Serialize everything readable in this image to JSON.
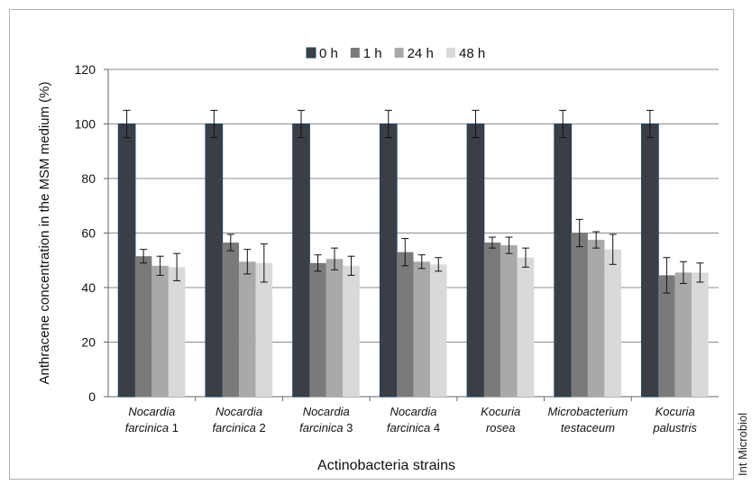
{
  "chart_data": {
    "type": "bar",
    "ylabel": "Anthracene concentration in the MSM medium (%)",
    "xlabel": "Actinobacteria strains",
    "ylim": [
      0,
      120
    ],
    "yticks": [
      0,
      20,
      40,
      60,
      80,
      100,
      120
    ],
    "grid": true,
    "legend_position": "top-center",
    "categories": [
      {
        "italic": "Nocardia",
        "rest": "farcinica",
        "suffix": " 1"
      },
      {
        "italic": "Nocardia",
        "rest": "farcinica",
        "suffix": " 2"
      },
      {
        "italic": "Nocardia",
        "rest": "farcinica",
        "suffix": " 3"
      },
      {
        "italic": "Nocardia",
        "rest": "farcinica",
        "suffix": " 4"
      },
      {
        "italic": "Kocuria",
        "rest": "rosea",
        "suffix": ""
      },
      {
        "italic": "Microbacterium",
        "rest": "testaceum",
        "suffix": ""
      },
      {
        "italic": "Kocuria",
        "rest": "palustris",
        "suffix": ""
      }
    ],
    "series": [
      {
        "name": "0 h",
        "color": "#3b3f45",
        "values": [
          100,
          100,
          100,
          100,
          100,
          100,
          100
        ],
        "errors": [
          5,
          5,
          5,
          5,
          5,
          5,
          5
        ]
      },
      {
        "name": "1 h",
        "color": "#7a7a7a",
        "values": [
          51.5,
          56.5,
          49,
          53,
          56.5,
          60,
          44.5
        ],
        "errors": [
          2.5,
          3,
          3,
          5,
          2,
          5,
          6.5
        ]
      },
      {
        "name": "24 h",
        "color": "#a9a9a9",
        "values": [
          48,
          49.5,
          50.5,
          49.5,
          55.5,
          57.5,
          45.5
        ],
        "errors": [
          3.5,
          4.5,
          4,
          2.5,
          3,
          3,
          4
        ]
      },
      {
        "name": "48 h",
        "color": "#d9d9d9",
        "values": [
          47.5,
          49,
          48,
          48.5,
          51,
          54,
          45.5
        ],
        "errors": [
          5,
          7,
          3.5,
          2.5,
          3.5,
          5.5,
          3.5
        ]
      }
    ]
  },
  "credit": "Int Microbiol"
}
